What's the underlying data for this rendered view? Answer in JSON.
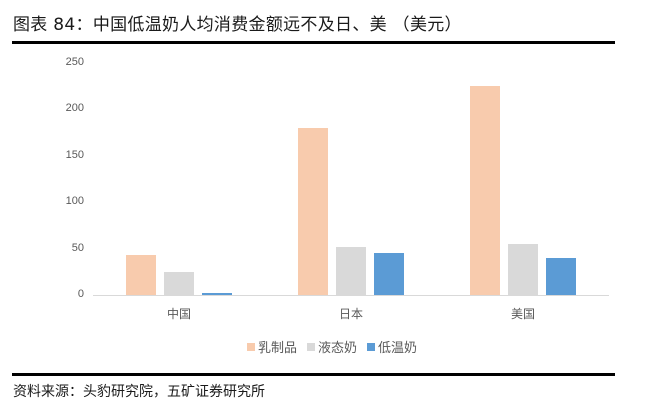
{
  "title": "图表 84：中国低温奶人均消费金额远不及日、美 （美元）",
  "source": "资料来源：头豹研究院，五矿证券研究所",
  "colors": {
    "乳制品": "#f8cbad",
    "液态奶": "#d9d9d9",
    "低温奶": "#5b9bd5"
  },
  "chart_data": {
    "type": "bar",
    "title": "中国低温奶人均消费金额远不及日、美 （美元）",
    "xlabel": "",
    "ylabel": "",
    "ylim": [
      0,
      250
    ],
    "yticks": [
      0,
      50,
      100,
      150,
      200,
      250
    ],
    "grid": false,
    "legend_position": "bottom",
    "categories": [
      "中国",
      "日本",
      "美国"
    ],
    "series": [
      {
        "name": "乳制品",
        "color": "#f8cbad",
        "values": [
          43,
          180,
          225
        ]
      },
      {
        "name": "液态奶",
        "color": "#d9d9d9",
        "values": [
          25,
          52,
          55
        ]
      },
      {
        "name": "低温奶",
        "color": "#5b9bd5",
        "values": [
          2,
          45,
          40
        ]
      }
    ]
  },
  "yticks_labels": [
    "250",
    "200",
    "150",
    "100",
    "50",
    "0"
  ],
  "legend": [
    "乳制品",
    "液态奶",
    "低温奶"
  ]
}
